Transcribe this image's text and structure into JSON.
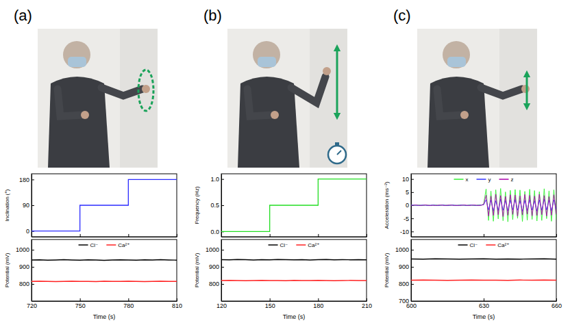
{
  "panel_labels": [
    "(a)",
    "(b)",
    "(c)"
  ],
  "chart_data": [
    {
      "type": "line",
      "ylabel": "Inclination (°)",
      "tick_labels": "y",
      "x": [
        720,
        750,
        780,
        810
      ],
      "xlim": [
        720,
        810
      ],
      "xticks": [
        720,
        750,
        780,
        810
      ],
      "ylim": [
        -20,
        200
      ],
      "yticks": [
        0,
        90,
        180
      ],
      "series": [
        {
          "color": "#2b2bff",
          "line_style": "step",
          "values": [
            0,
            90,
            180,
            180
          ]
        }
      ]
    },
    {
      "type": "line",
      "xlabel": "Time (s)",
      "ylabel": "Potential (mV)",
      "legend": "top",
      "x": [
        720,
        725,
        730,
        735,
        740,
        745,
        750,
        755,
        760,
        765,
        770,
        775,
        780,
        785,
        790,
        795,
        800,
        805,
        810
      ],
      "xlim": [
        720,
        810
      ],
      "xticks": [
        720,
        750,
        780,
        810
      ],
      "ylim": [
        700,
        1060
      ],
      "yticks": [
        800,
        900,
        1000
      ],
      "series": [
        {
          "name": "Cl⁻",
          "color": "#000000",
          "values": [
            940,
            941,
            939,
            940,
            942,
            940,
            939,
            941,
            940,
            938,
            940,
            941,
            940,
            939,
            941,
            940,
            942,
            940,
            939
          ]
        },
        {
          "name": "Ca²⁺",
          "color": "#ff2020",
          "values": [
            815,
            816,
            815,
            814,
            815,
            816,
            815,
            815,
            814,
            816,
            815,
            815,
            816,
            815,
            814,
            815,
            816,
            815,
            815
          ]
        }
      ]
    },
    {
      "type": "line",
      "ylabel": "Frequency (Hz)",
      "tick_labels": "y",
      "x": [
        120,
        150,
        180,
        210
      ],
      "xlim": [
        120,
        210
      ],
      "xticks": [
        120,
        150,
        180,
        210
      ],
      "ylim": [
        -0.1,
        1.1
      ],
      "yticks": [
        {
          "value": 0,
          "label": "0.0"
        },
        0.5,
        {
          "value": 1,
          "label": "1.0"
        }
      ],
      "series": [
        {
          "color": "#22dd22",
          "line_style": "step",
          "values": [
            0,
            0.5,
            1,
            1
          ]
        }
      ]
    },
    {
      "type": "line",
      "xlabel": "Time (s)",
      "ylabel": "Potential (mV)",
      "legend": "top",
      "x": [
        120,
        125,
        130,
        135,
        140,
        145,
        150,
        155,
        160,
        165,
        170,
        175,
        180,
        185,
        190,
        195,
        200,
        205,
        210
      ],
      "xlim": [
        120,
        210
      ],
      "xticks": [
        120,
        150,
        180,
        210
      ],
      "ylim": [
        700,
        1060
      ],
      "yticks": [
        800,
        900,
        1000
      ],
      "series": [
        {
          "name": "Cl⁻",
          "color": "#000000",
          "values": [
            942,
            941,
            943,
            942,
            940,
            942,
            941,
            943,
            942,
            941,
            942,
            940,
            942,
            943,
            941,
            942,
            941,
            942,
            941
          ]
        },
        {
          "name": "Ca²⁺",
          "color": "#ff2020",
          "values": [
            820,
            821,
            820,
            819,
            820,
            821,
            820,
            820,
            819,
            821,
            820,
            820,
            821,
            820,
            819,
            820,
            821,
            820,
            820
          ]
        }
      ]
    },
    {
      "type": "line",
      "ylabel": "Acceleration (ms⁻²)",
      "tick_labels": "y",
      "legend": "top",
      "x": [
        600,
        601,
        602,
        603,
        604,
        605,
        606,
        607,
        608,
        609,
        610,
        611,
        612,
        613,
        614,
        615,
        616,
        617,
        618,
        619,
        620,
        621,
        622,
        623,
        624,
        625,
        626,
        627,
        628,
        629,
        630,
        631,
        632,
        633,
        634,
        635,
        636,
        637,
        638,
        639,
        640,
        641,
        642,
        643,
        644,
        645,
        646,
        647,
        648,
        649,
        650,
        651,
        652,
        653,
        654,
        655,
        656,
        657,
        658,
        659,
        660
      ],
      "xlim": [
        600,
        660
      ],
      "xticks": [
        600,
        630,
        660
      ],
      "ylim": [
        -12,
        12
      ],
      "yticks": [
        -10,
        -5,
        0,
        5,
        10
      ],
      "series": [
        {
          "name": "x",
          "color": "#33ee33",
          "values": [
            0.1,
            -0.1,
            0,
            0.1,
            0,
            -0.1,
            0.1,
            0,
            -0.1,
            0,
            0.1,
            0,
            -0.1,
            0.1,
            0,
            0,
            -0.1,
            0.1,
            0,
            -0.1,
            0.1,
            0,
            0,
            -0.1,
            0.1,
            0,
            -0.1,
            0,
            0.1,
            0,
            0.5,
            6.2,
            -5.8,
            5.4,
            -6.1,
            5.9,
            -5.2,
            6.4,
            -5.9,
            5.1,
            -6.3,
            5.7,
            -5.5,
            6.0,
            -5.0,
            5.8,
            -6.2,
            5.3,
            -5.7,
            6.1,
            -5.4,
            5.6,
            -6.0,
            5.2,
            -5.8,
            6.3,
            -5.1,
            5.5,
            -6.1,
            5.9,
            -5.6
          ]
        },
        {
          "name": "y",
          "color": "#3333ff",
          "values": [
            0,
            0.1,
            0,
            -0.1,
            0,
            0.1,
            0,
            -0.1,
            0,
            0.1,
            0,
            -0.1,
            0,
            0.1,
            0,
            -0.1,
            0,
            0.1,
            0,
            -0.1,
            0,
            0.1,
            0,
            -0.1,
            0,
            0.1,
            0,
            -0.1,
            0,
            0.1,
            0.2,
            2.1,
            -1.8,
            1.9,
            -2.2,
            1.7,
            -2.0,
            2.3,
            -1.9,
            1.8,
            -2.1,
            2.0,
            -1.7,
            2.2,
            -1.9,
            1.8,
            -2.3,
            1.9,
            -2.0,
            2.1,
            -1.8,
            1.7,
            -2.2,
            2.0,
            -1.9,
            2.3,
            -1.8,
            1.9,
            -2.1,
            2.0,
            -1.7
          ]
        },
        {
          "name": "z",
          "color": "#aa00aa",
          "values": [
            -0.1,
            0,
            0.1,
            0,
            -0.1,
            0,
            0.1,
            0,
            -0.1,
            0,
            -0.1,
            0,
            0.1,
            0,
            -0.1,
            0,
            0.1,
            0,
            -0.1,
            0,
            -0.1,
            0,
            0.1,
            0,
            -0.1,
            0,
            0.1,
            0,
            -0.1,
            0,
            0.3,
            3.8,
            -4.1,
            3.5,
            -3.9,
            4.2,
            -3.6,
            3.7,
            -4.3,
            3.4,
            -3.8,
            4.0,
            -3.5,
            3.9,
            -4.2,
            3.6,
            -3.7,
            4.1,
            -3.4,
            3.8,
            -4.0,
            3.5,
            -3.9,
            4.2,
            -3.6,
            3.7,
            -4.1,
            3.3,
            -3.8,
            4.0,
            -3.5
          ]
        }
      ]
    },
    {
      "type": "line",
      "xlabel": "Time (s)",
      "ylabel": "Potential (mV)",
      "legend": "top",
      "x": [
        600,
        605,
        610,
        615,
        620,
        625,
        630,
        635,
        640,
        645,
        650,
        655,
        660
      ],
      "xlim": [
        600,
        660
      ],
      "xticks": [
        600,
        630,
        660
      ],
      "ylim": [
        700,
        1060
      ],
      "yticks": [
        700,
        800,
        900,
        1000
      ],
      "series": [
        {
          "name": "Cl⁻",
          "color": "#000000",
          "values": [
            946,
            945,
            947,
            946,
            945,
            946,
            947,
            945,
            946,
            945,
            946,
            947,
            945
          ]
        },
        {
          "name": "Ca²⁺",
          "color": "#ff2020",
          "values": [
            822,
            823,
            822,
            821,
            822,
            823,
            822,
            822,
            821,
            823,
            822,
            823,
            822
          ]
        }
      ]
    }
  ]
}
